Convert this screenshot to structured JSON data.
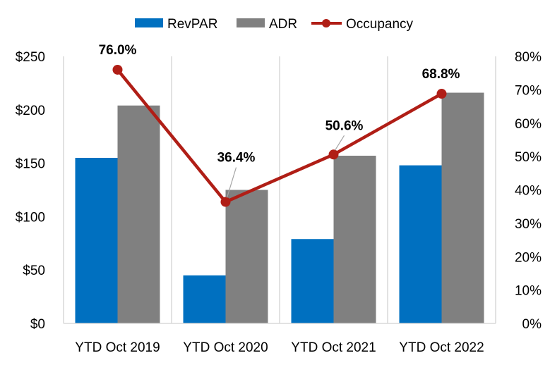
{
  "chart_data": {
    "type": "bar",
    "categories": [
      "YTD Oct 2019",
      "YTD Oct 2020",
      "YTD Oct 2021",
      "YTD Oct 2022"
    ],
    "series": [
      {
        "name": "RevPAR",
        "type": "bar",
        "axis": "left",
        "values": [
          155,
          45,
          79,
          148
        ],
        "color": "#0070C0"
      },
      {
        "name": "ADR",
        "type": "bar",
        "axis": "left",
        "values": [
          204,
          125,
          157,
          216
        ],
        "color": "#808080"
      },
      {
        "name": "Occupancy",
        "type": "line",
        "axis": "right",
        "values": [
          76.0,
          36.4,
          50.6,
          68.8
        ],
        "color": "#B01E16",
        "data_labels": [
          "76.0%",
          "36.4%",
          "50.6%",
          "68.8%"
        ]
      }
    ],
    "y_left": {
      "min": 0,
      "max": 250,
      "ticks": [
        "$0",
        "$50",
        "$100",
        "$150",
        "$200",
        "$250"
      ]
    },
    "y_right": {
      "min": 0,
      "max": 80,
      "ticks": [
        "0%",
        "10%",
        "20%",
        "30%",
        "40%",
        "50%",
        "60%",
        "70%",
        "80%"
      ]
    },
    "grid": "vertical-separators",
    "legend_position": "top"
  }
}
